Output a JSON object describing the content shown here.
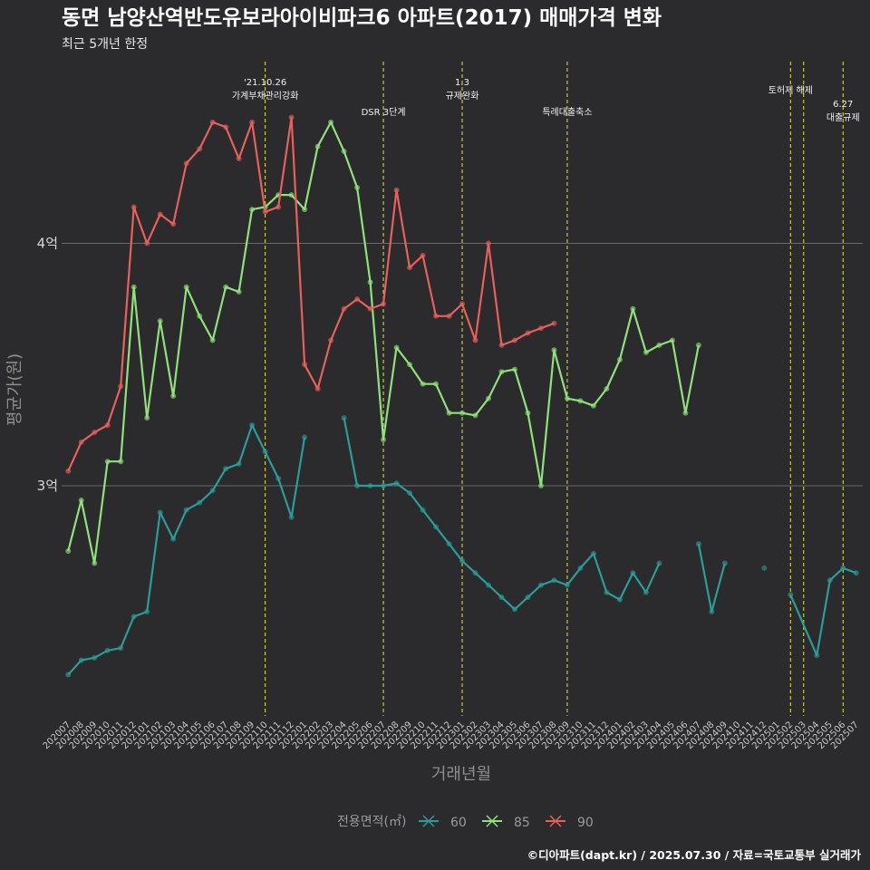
{
  "chart_data": {
    "type": "line",
    "title": "동면 남양산역반도유보라아이비파크6 아파트(2017) 매매가격 변화",
    "subtitle": "최근 5개년 한정",
    "xlabel": "거래년월",
    "ylabel": "평균가(원)",
    "caption": "©디아파트(dapt.kr) / 2025.07.30 / 자료=국토교통부 실거래가",
    "y_ticks": [
      {
        "value": 3.0,
        "label": "3억"
      },
      {
        "value": 4.0,
        "label": "4억"
      }
    ],
    "ylim": [
      2.05,
      4.75
    ],
    "grid": "horizontal",
    "legend": {
      "title": "전용면적(㎡)",
      "position": "bottom"
    },
    "colors": {
      "60": "#2a9d9a",
      "85": "#8fe27a",
      "90": "#e8605c",
      "vline": "#e6e633"
    },
    "x": [
      "202007",
      "202008",
      "202009",
      "202010",
      "202011",
      "202012",
      "202101",
      "202102",
      "202103",
      "202104",
      "202105",
      "202106",
      "202107",
      "202108",
      "202109",
      "202110",
      "202111",
      "202112",
      "202201",
      "202202",
      "202203",
      "202204",
      "202205",
      "202206",
      "202207",
      "202208",
      "202209",
      "202210",
      "202211",
      "202212",
      "202301",
      "202302",
      "202303",
      "202304",
      "202305",
      "202306",
      "202307",
      "202308",
      "202309",
      "202310",
      "202311",
      "202312",
      "202401",
      "202402",
      "202403",
      "202404",
      "202405",
      "202406",
      "202407",
      "202408",
      "202409",
      "202410",
      "202411",
      "202412",
      "202501",
      "202502",
      "202503",
      "202504",
      "202505",
      "202506",
      "202507"
    ],
    "x_tick_labels": [
      "202007",
      "202008",
      "202009",
      "202010",
      "202011",
      "202012",
      "202101",
      "202102",
      "202103",
      "202104",
      "202105",
      "202106",
      "202107",
      "202108",
      "202109",
      "202110",
      "202111",
      "202112",
      "202201",
      "202202",
      "202203",
      "202204",
      "202205",
      "202206",
      "202207",
      "202208",
      "202209",
      "202210",
      "202211",
      "202212",
      "202301",
      "202302",
      "202303",
      "202304",
      "202305",
      "202306",
      "202307",
      "202308",
      "202309",
      "202310",
      "202311",
      "202312",
      "202401",
      "202402",
      "202403",
      "202404",
      "202405",
      "202406",
      "202407",
      "202408",
      "202409",
      "202410",
      "202411",
      "202412",
      "202501",
      "202502",
      "202503",
      "202504",
      "202505",
      "202506",
      "202507"
    ],
    "annotations": [
      {
        "x": "202110",
        "lines": [
          "'21.10.26",
          "가계부채관리강화"
        ]
      },
      {
        "x": "202207",
        "lines": [
          "DSR 3단계"
        ]
      },
      {
        "x": "202301",
        "lines": [
          "1.3",
          "규제완화"
        ]
      },
      {
        "x": "202309",
        "lines": [
          "특례대출축소"
        ]
      },
      {
        "x": "202502",
        "lines": [
          "토허제 해제"
        ]
      },
      {
        "x": "202503",
        "lines": []
      },
      {
        "x": "202506",
        "lines": [
          "6.27",
          "대출규제"
        ]
      }
    ],
    "series": [
      {
        "name": "60",
        "points": [
          [
            "202007",
            2.22
          ],
          [
            "202008",
            2.28
          ],
          [
            "202009",
            2.29
          ],
          [
            "202010",
            2.32
          ],
          [
            "202011",
            2.33
          ],
          [
            "202012",
            2.46
          ],
          [
            "202101",
            2.48
          ],
          [
            "202102",
            2.89
          ],
          [
            "202103",
            2.78
          ],
          [
            "202104",
            2.9
          ],
          [
            "202105",
            2.93
          ],
          [
            "202106",
            2.98
          ],
          [
            "202107",
            3.07
          ],
          [
            "202108",
            3.09
          ],
          [
            "202109",
            3.25
          ],
          [
            "202110",
            3.14
          ],
          [
            "202111",
            3.03
          ],
          [
            "202112",
            2.87
          ],
          [
            "202201",
            3.2
          ],
          null,
          null,
          [
            "202204",
            3.28
          ],
          [
            "202205",
            3.0
          ],
          [
            "202206",
            3.0
          ],
          [
            "202207",
            3.0
          ],
          [
            "202208",
            3.01
          ],
          [
            "202209",
            2.97
          ],
          [
            "202210",
            2.9
          ],
          [
            "202211",
            2.83
          ],
          [
            "202212",
            2.76
          ],
          [
            "202301",
            2.69
          ],
          [
            "202302",
            2.64
          ],
          [
            "202303",
            2.59
          ],
          [
            "202304",
            2.54
          ],
          [
            "202305",
            2.49
          ],
          [
            "202306",
            2.54
          ],
          [
            "202307",
            2.59
          ],
          [
            "202308",
            2.61
          ],
          [
            "202309",
            2.59
          ],
          [
            "202310",
            2.66
          ],
          [
            "202311",
            2.72
          ],
          [
            "202312",
            2.56
          ],
          [
            "202401",
            2.53
          ],
          [
            "202402",
            2.64
          ],
          [
            "202403",
            2.56
          ],
          [
            "202404",
            2.68
          ],
          null,
          null,
          [
            "202407",
            2.76
          ],
          [
            "202408",
            2.48
          ],
          [
            "202409",
            2.68
          ],
          null,
          [
            "202412",
            2.66
          ],
          null,
          [
            "202502",
            2.55
          ],
          [
            "202504",
            2.3
          ],
          [
            "202505",
            2.61
          ],
          [
            "202506",
            2.66
          ],
          [
            "202507",
            2.64
          ]
        ]
      },
      {
        "name": "85",
        "points": [
          [
            "202007",
            2.73
          ],
          [
            "202008",
            2.94
          ],
          [
            "202009",
            2.68
          ],
          [
            "202010",
            3.1
          ],
          [
            "202011",
            3.1
          ],
          [
            "202012",
            3.82
          ],
          [
            "202101",
            3.28
          ],
          [
            "202102",
            3.68
          ],
          [
            "202103",
            3.37
          ],
          [
            "202104",
            3.82
          ],
          [
            "202105",
            3.7
          ],
          [
            "202106",
            3.6
          ],
          [
            "202107",
            3.82
          ],
          [
            "202108",
            3.8
          ],
          [
            "202109",
            4.14
          ],
          [
            "202110",
            4.15
          ],
          [
            "202111",
            4.2
          ],
          [
            "202112",
            4.2
          ],
          [
            "202201",
            4.14
          ],
          [
            "202202",
            4.4
          ],
          [
            "202203",
            4.5
          ],
          [
            "202204",
            4.38
          ],
          [
            "202205",
            4.23
          ],
          [
            "202206",
            3.84
          ],
          [
            "202207",
            3.19
          ],
          [
            "202208",
            3.57
          ],
          [
            "202209",
            3.5
          ],
          [
            "202210",
            3.42
          ],
          [
            "202211",
            3.42
          ],
          [
            "202212",
            3.3
          ],
          [
            "202301",
            3.3
          ],
          [
            "202302",
            3.29
          ],
          [
            "202303",
            3.36
          ],
          [
            "202304",
            3.47
          ],
          [
            "202305",
            3.48
          ],
          [
            "202306",
            3.3
          ],
          [
            "202307",
            3.0
          ],
          [
            "202308",
            3.56
          ],
          [
            "202309",
            3.36
          ],
          [
            "202310",
            3.35
          ],
          [
            "202311",
            3.33
          ],
          [
            "202312",
            3.4
          ],
          [
            "202401",
            3.52
          ],
          [
            "202402",
            3.73
          ],
          [
            "202403",
            3.55
          ],
          [
            "202404",
            3.58
          ],
          [
            "202405",
            3.6
          ],
          [
            "202406",
            3.3
          ],
          [
            "202407",
            3.58
          ]
        ]
      },
      {
        "name": "90",
        "points": [
          [
            "202007",
            3.06
          ],
          [
            "202008",
            3.18
          ],
          [
            "202009",
            3.22
          ],
          [
            "202010",
            3.25
          ],
          [
            "202011",
            3.41
          ],
          [
            "202012",
            4.15
          ],
          [
            "202101",
            4.0
          ],
          [
            "202102",
            4.12
          ],
          [
            "202103",
            4.08
          ],
          [
            "202104",
            4.33
          ],
          [
            "202105",
            4.39
          ],
          [
            "202106",
            4.5
          ],
          [
            "202107",
            4.48
          ],
          [
            "202108",
            4.35
          ],
          [
            "202109",
            4.5
          ],
          [
            "202110",
            4.13
          ],
          [
            "202111",
            4.15
          ],
          [
            "202112",
            4.52
          ],
          [
            "202201",
            3.5
          ],
          [
            "202202",
            3.4
          ],
          [
            "202203",
            3.6
          ],
          [
            "202204",
            3.73
          ],
          [
            "202205",
            3.77
          ],
          [
            "202206",
            3.73
          ],
          [
            "202207",
            3.75
          ],
          [
            "202208",
            4.22
          ],
          [
            "202209",
            3.9
          ],
          [
            "202210",
            3.95
          ],
          [
            "202211",
            3.7
          ],
          [
            "202212",
            3.7
          ],
          [
            "202301",
            3.75
          ],
          [
            "202302",
            3.6
          ],
          [
            "202303",
            4.0
          ],
          [
            "202304",
            3.58
          ],
          [
            "202305",
            3.6
          ],
          [
            "202306",
            3.63
          ],
          [
            "202307",
            3.65
          ],
          [
            "202308",
            3.67
          ]
        ]
      }
    ]
  }
}
